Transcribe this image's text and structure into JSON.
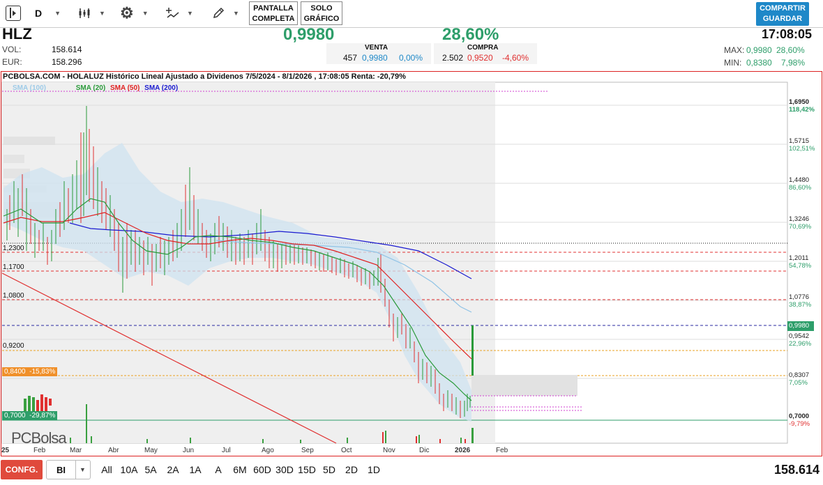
{
  "toolbar": {
    "period": "D",
    "fullscreen": "PANTALLA COMPLETA",
    "only_chart": "SOLO GRÁFICO",
    "share": "COMPARTIR GUARDAR"
  },
  "quote": {
    "symbol": "HLZ",
    "price": "0,9980",
    "change_pct": "28,60%",
    "time": "17:08:05",
    "vol_label": "VOL:",
    "vol_value": "158.614",
    "eur_label": "EUR:",
    "eur_value": "158.296",
    "sell": {
      "label": "VENTA",
      "qty": "457",
      "price": "0,9980",
      "pct": "0,00%"
    },
    "buy": {
      "label": "COMPRA",
      "qty": "2.502",
      "price": "0,9520",
      "pct": "-4,60%"
    },
    "max_label": "MAX:",
    "max_value": "0,9980",
    "max_pct": "28,60%",
    "min_label": "MIN:",
    "min_value": "0,8380",
    "min_pct": "7,98%"
  },
  "chart": {
    "title": "PCBOLSA.COM - HOLALUZ Histórico Lineal Ajustado a Dividenos 7/5/2024 - 8/1/2026 , 17:08:05 Renta: -20,79%",
    "legend": [
      {
        "label": "SMA (100)",
        "color": "#9ecbe8"
      },
      {
        "label": "SMA (20)",
        "color": "#2a9a3a"
      },
      {
        "label": "SMA (50)",
        "color": "#e02020"
      },
      {
        "label": "SMA (200)",
        "color": "#1a1ad0"
      }
    ],
    "right_axis": [
      {
        "price": "1,6950",
        "pct": "118,42%"
      },
      {
        "price": "1,5715",
        "pct": "102,51%"
      },
      {
        "price": "1,4480",
        "pct": "86,60%"
      },
      {
        "price": "1,3246",
        "pct": "70,69%"
      },
      {
        "price": "1,2011",
        "pct": "54,78%"
      },
      {
        "price": "1,0776",
        "pct": "38,87%"
      },
      {
        "price": "0,9542",
        "pct": "22,96%"
      },
      {
        "price": "0,8307",
        "pct": "7,05%"
      },
      {
        "price": "0,7000",
        "pct": "-9,79%"
      }
    ],
    "current_tag": "0,9980",
    "left_levels": [
      "1,2300",
      "1,1700",
      "1,0800",
      "0,9200"
    ],
    "tag_orange": "0,8400  -15,83%",
    "tag_green": "0,7000  -29,87%",
    "months": [
      "25",
      "Feb",
      "Mar",
      "Abr",
      "May",
      "Jun",
      "Jul",
      "Ago",
      "Sep",
      "Oct",
      "Nov",
      "Dic",
      "2026",
      "Feb"
    ],
    "watermark": "PCBolsa"
  },
  "bottom": {
    "config": "CONFG.",
    "select": "BI",
    "ranges": [
      "All",
      "10A",
      "5A",
      "2A",
      "1A",
      "A",
      "6M",
      "60D",
      "30D",
      "15D",
      "5D",
      "2D",
      "1D"
    ],
    "volume": "158.614"
  }
}
